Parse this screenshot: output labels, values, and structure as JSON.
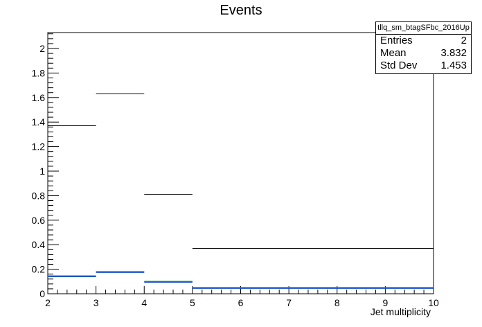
{
  "chart_data": {
    "type": "histogram",
    "title": "Events",
    "xlabel": "Jet multiplicity",
    "ylabel": "",
    "xlim": [
      2,
      10
    ],
    "ylim": [
      0,
      2.13
    ],
    "x_ticks": [
      "2",
      "3",
      "4",
      "5",
      "6",
      "7",
      "8",
      "9",
      "10"
    ],
    "y_ticks": [
      "0",
      "0.2",
      "0.4",
      "0.6",
      "0.8",
      "1",
      "1.2",
      "1.4",
      "1.6",
      "1.8",
      "2"
    ],
    "bin_edges": [
      2,
      3,
      4,
      5,
      10
    ],
    "series": [
      {
        "color": "#000000",
        "values": [
          1.37,
          1.63,
          0.81,
          0.37
        ]
      },
      {
        "color": "#1f9e3a",
        "values": [
          0.145,
          0.18,
          0.1,
          0.05
        ]
      },
      {
        "color": "#1a4fd6",
        "values": [
          0.14,
          0.175,
          0.095,
          0.045
        ]
      }
    ],
    "stats_box": {
      "name": "tllq_sm_btagSFbc_2016Up",
      "rows": [
        {
          "label": "Entries",
          "value": "2"
        },
        {
          "label": "Mean",
          "value": "3.832"
        },
        {
          "label": "Std Dev",
          "value": "1.453"
        }
      ]
    }
  }
}
